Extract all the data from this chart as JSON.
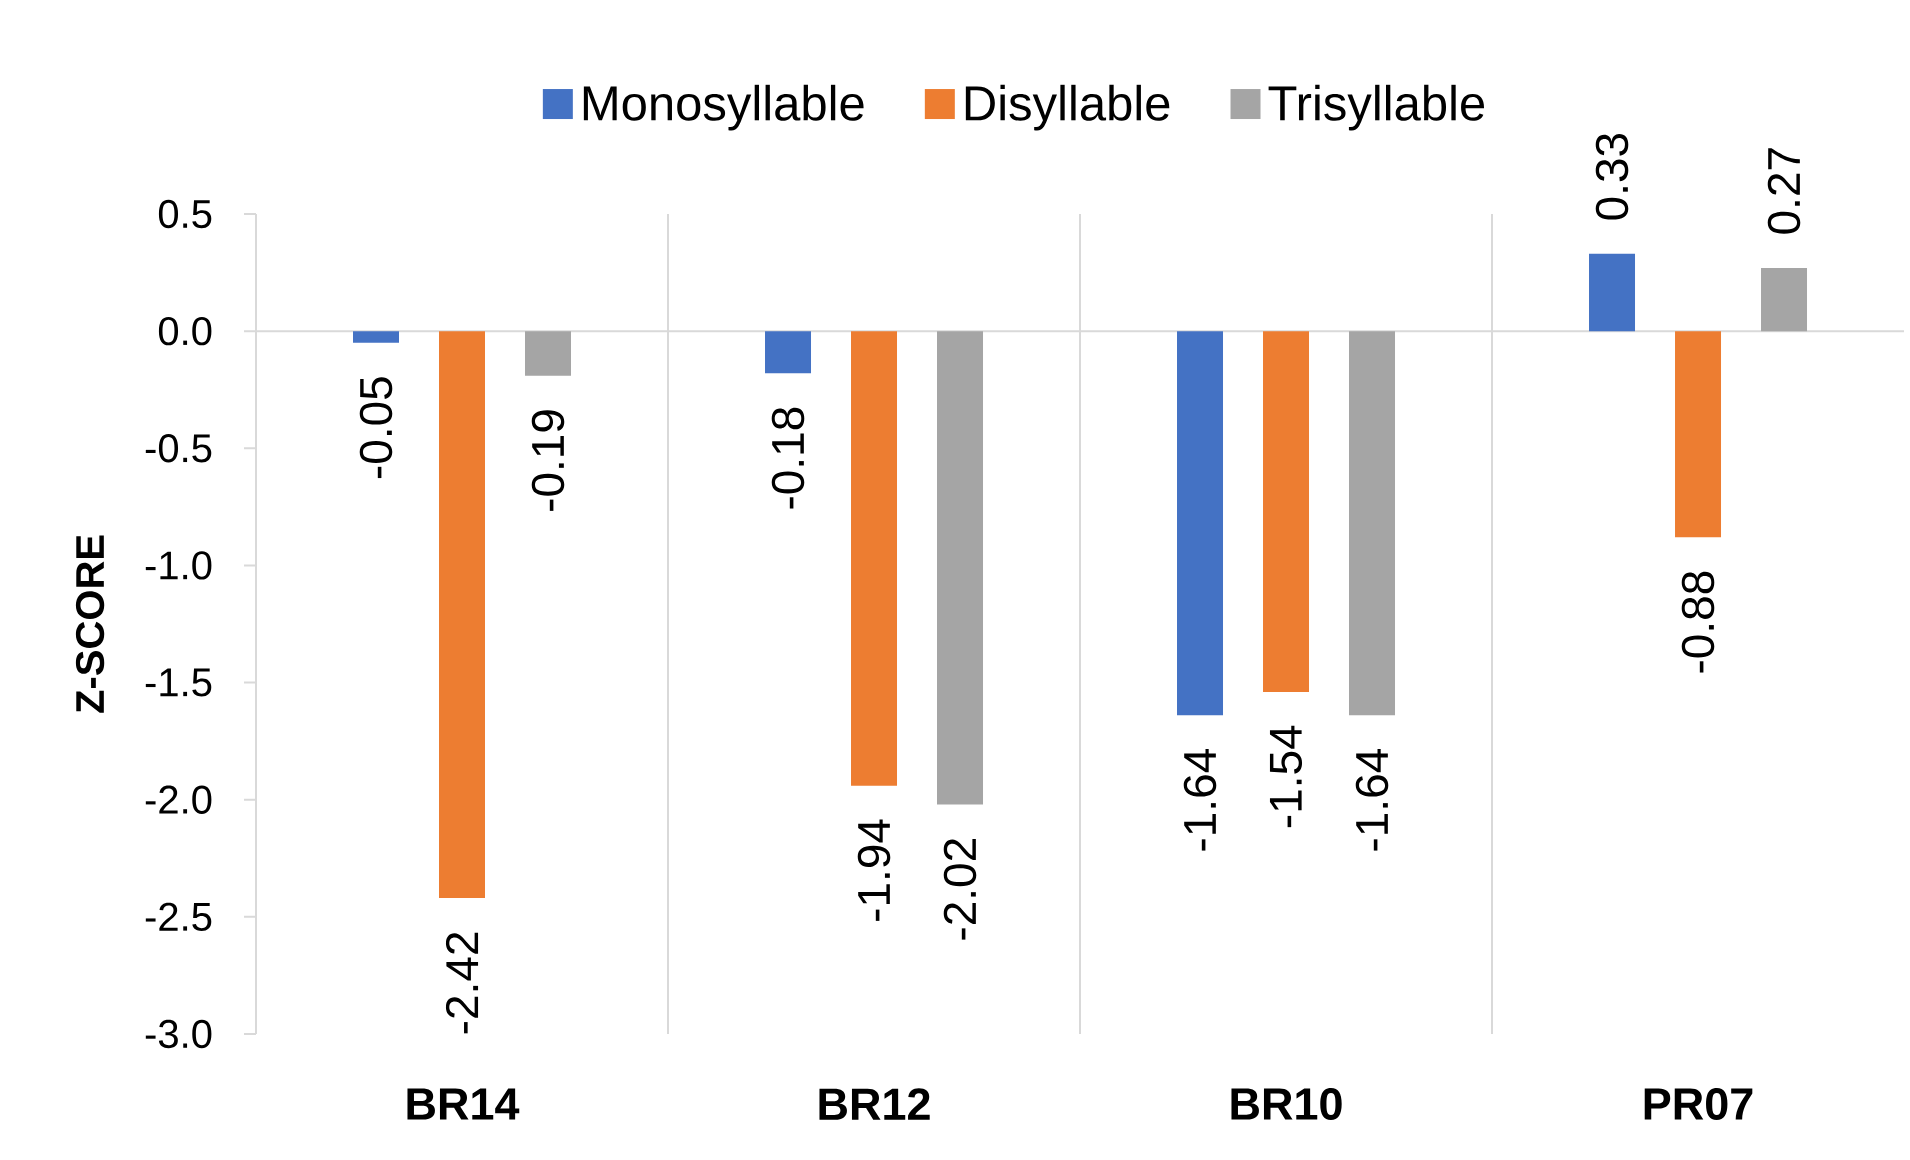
{
  "chart_data": {
    "type": "bar",
    "ylabel": "Z-SCORE",
    "categories": [
      "BR14",
      "BR12",
      "BR10",
      "PR07"
    ],
    "series": [
      {
        "name": "Monosyllable",
        "color": "#4472c4",
        "values": [
          -0.05,
          -0.18,
          -1.64,
          0.33
        ]
      },
      {
        "name": "Disyllable",
        "color": "#ed7d31",
        "values": [
          -2.42,
          -1.94,
          -1.54,
          -0.88
        ]
      },
      {
        "name": "Trisyllable",
        "color": "#a5a5a5",
        "values": [
          -0.19,
          -2.02,
          -1.64,
          0.27
        ]
      }
    ],
    "ylim": [
      -3,
      0.5
    ],
    "yticks": [
      {
        "value": -3,
        "label": "-3.0"
      },
      -2.5,
      {
        "value": -2,
        "label": "-2.0"
      },
      -1.5,
      {
        "value": -1,
        "label": "-1.0"
      },
      -0.5,
      {
        "value": 0,
        "label": "0.0"
      },
      0.5
    ],
    "ref_lines": [
      {
        "axis": "y",
        "value": 0,
        "color": "#d9d9d9"
      }
    ],
    "grid": "x",
    "legend": "top",
    "data_labels": true
  }
}
